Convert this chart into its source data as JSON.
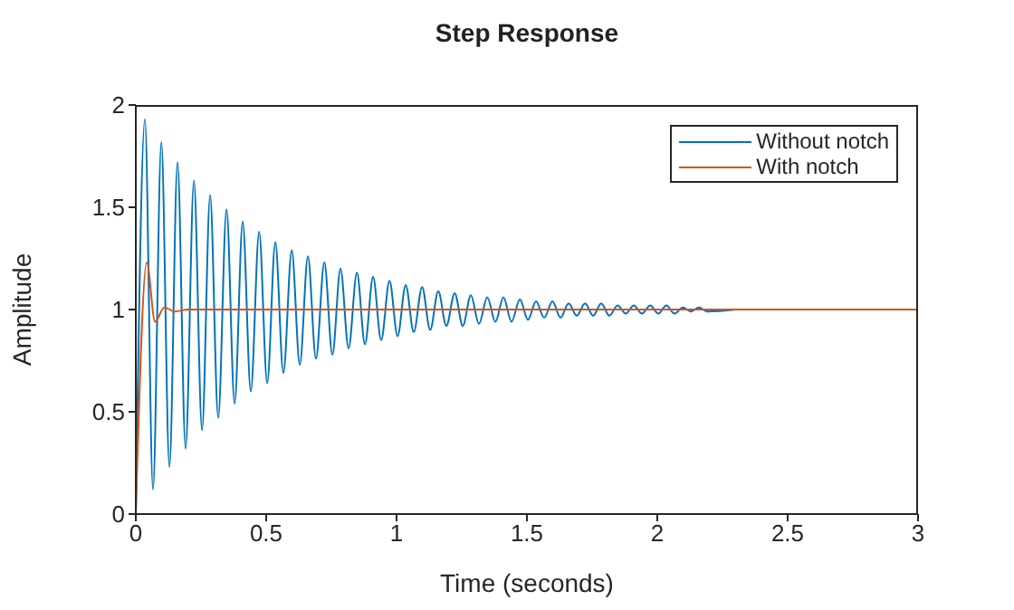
{
  "chart_data": {
    "type": "line",
    "title": "Step Response",
    "xlabel": "Time (seconds)",
    "ylabel": "Amplitude",
    "xlim": [
      0,
      3
    ],
    "xticks": [
      0,
      0.5,
      1,
      1.5,
      2,
      2.5,
      3
    ],
    "ylim": [
      0,
      2
    ],
    "yticks": [
      0,
      0.5,
      1,
      1.5,
      2
    ],
    "grid": false,
    "legend": "top right",
    "marker": "none",
    "line_style": "solid",
    "series": [
      {
        "name": "Without notch",
        "color": "#0072bd",
        "x": [
          0,
          0.035,
          0.066,
          0.098,
          0.129,
          0.16,
          0.191,
          0.223,
          0.254,
          0.285,
          0.316,
          0.348,
          0.379,
          0.41,
          0.441,
          0.473,
          0.504,
          0.535,
          0.566,
          0.598,
          0.629,
          0.66,
          0.691,
          0.723,
          0.754,
          0.785,
          0.816,
          0.848,
          0.879,
          0.91,
          0.941,
          0.973,
          1.004,
          1.035,
          1.066,
          1.098,
          1.129,
          1.16,
          1.191,
          1.223,
          1.254,
          1.285,
          1.316,
          1.348,
          1.379,
          1.41,
          1.441,
          1.473,
          1.504,
          1.535,
          1.566,
          1.598,
          1.629,
          1.66,
          1.691,
          1.723,
          1.754,
          1.785,
          1.816,
          1.848,
          1.879,
          1.91,
          1.941,
          1.973,
          2.004,
          2.035,
          2.066,
          2.098,
          2.129,
          2.16,
          2.191,
          2.3
        ],
        "values": [
          0,
          1.93,
          0.12,
          1.82,
          0.23,
          1.72,
          0.32,
          1.63,
          0.41,
          1.56,
          0.47,
          1.49,
          0.54,
          1.43,
          0.6,
          1.38,
          0.64,
          1.33,
          0.69,
          1.29,
          0.73,
          1.26,
          0.76,
          1.23,
          0.78,
          1.2,
          0.81,
          1.18,
          0.83,
          1.16,
          0.85,
          1.14,
          0.87,
          1.12,
          0.89,
          1.11,
          0.9,
          1.09,
          0.92,
          1.08,
          0.92,
          1.07,
          0.93,
          1.06,
          0.94,
          1.06,
          0.94,
          1.05,
          0.95,
          1.04,
          0.96,
          1.04,
          0.96,
          1.03,
          0.97,
          1.03,
          0.97,
          1.03,
          0.97,
          1.02,
          0.98,
          1.02,
          0.98,
          1.02,
          0.98,
          1.02,
          0.98,
          1.01,
          0.99,
          1.01,
          0.99,
          1
        ]
      },
      {
        "name": "With notch",
        "color": "#d95319",
        "x": [
          0,
          0.042,
          0.074,
          0.109,
          0.15,
          0.2,
          3
        ],
        "values": [
          0,
          1.23,
          0.94,
          1.01,
          0.99,
          1,
          1
        ]
      }
    ]
  }
}
